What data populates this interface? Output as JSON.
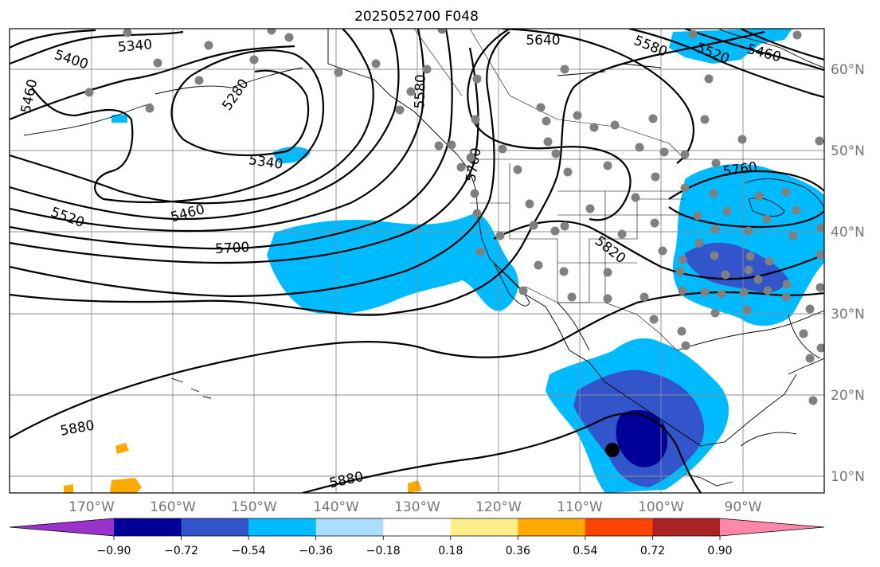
{
  "title": "2025052700 F048",
  "map": {
    "lon_labels": [
      "170°W",
      "160°W",
      "150°W",
      "140°W",
      "130°W",
      "120°W",
      "110°W",
      "100°W",
      "90°W"
    ],
    "lat_labels": [
      "60°N",
      "50°N",
      "40°N",
      "30°N",
      "20°N",
      "10°N"
    ],
    "contour_labels": [
      "5340",
      "5400",
      "5460",
      "5280",
      "5340",
      "5520",
      "5460",
      "5700",
      "5880",
      "5880",
      "5640",
      "5580",
      "5580",
      "5520",
      "5460",
      "5760",
      "5820",
      "5760"
    ],
    "label_color": "#777777"
  },
  "colorbar": {
    "ticks": [
      "−0.90",
      "−0.72",
      "−0.54",
      "−0.36",
      "−0.18",
      "0.18",
      "0.36",
      "0.54",
      "0.72",
      "0.90"
    ],
    "colors": [
      "#9933cc",
      "#000099",
      "#3355cc",
      "#00bbff",
      "#aaddff",
      "#ffffff",
      "#ffee88",
      "#ffaa00",
      "#ff4400",
      "#aa2222",
      "#ff88aa"
    ]
  },
  "colors": {
    "neg_strong": "#000099",
    "neg_mid": "#3355cc",
    "neg_light": "#00bbff",
    "pos_mid": "#ffaa00",
    "station": "#808080",
    "low_marker": "#000000"
  }
}
